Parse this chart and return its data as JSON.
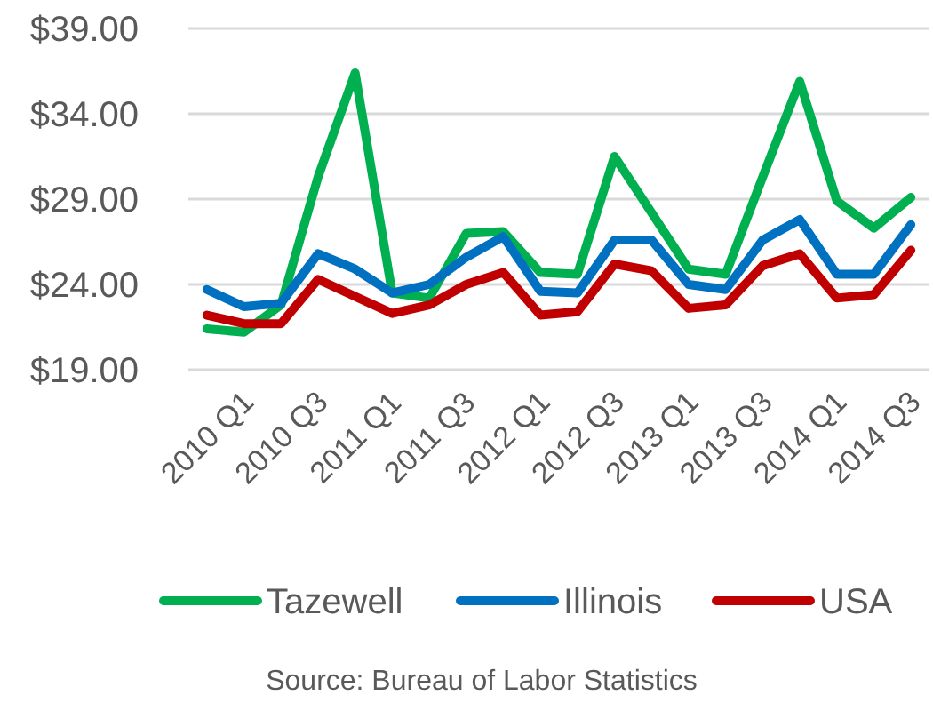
{
  "chart_data": {
    "type": "line",
    "categories": [
      "2010 Q1",
      null,
      "2010 Q3",
      null,
      "2011 Q1",
      null,
      "2011 Q3",
      null,
      "2012 Q1",
      null,
      "2012 Q3",
      null,
      "2013 Q1",
      null,
      "2013 Q3",
      null,
      "2014 Q1",
      null,
      "2014 Q3",
      null
    ],
    "series": [
      {
        "name": "Tazewell",
        "color": "#00b050",
        "values": [
          21.4,
          21.2,
          22.8,
          30.3,
          36.4,
          23.5,
          23.2,
          27.0,
          27.1,
          24.7,
          24.6,
          31.5,
          28.2,
          24.9,
          24.6,
          30.3,
          35.9,
          28.9,
          27.3,
          29.1
        ]
      },
      {
        "name": "Illinois",
        "color": "#0070c0",
        "values": [
          23.7,
          22.7,
          22.9,
          25.8,
          24.9,
          23.5,
          24.0,
          25.6,
          26.8,
          23.6,
          23.5,
          26.6,
          26.6,
          24.0,
          23.7,
          26.6,
          27.8,
          24.6,
          24.6,
          27.5
        ]
      },
      {
        "name": "USA",
        "color": "#c00000",
        "values": [
          22.2,
          21.7,
          21.7,
          24.3,
          23.3,
          22.3,
          22.8,
          24.0,
          24.7,
          22.2,
          22.4,
          25.2,
          24.8,
          22.6,
          22.8,
          25.1,
          25.8,
          23.2,
          23.4,
          26.0
        ]
      }
    ],
    "ylim": [
      19,
      39
    ],
    "yticks": [
      {
        "value": 19,
        "label": "$19.00"
      },
      {
        "value": 24,
        "label": "$24.00"
      },
      {
        "value": 29,
        "label": "$29.00"
      },
      {
        "value": 34,
        "label": "$34.00"
      },
      {
        "value": 39,
        "label": "$39.00"
      }
    ],
    "grid": "y",
    "legend": "bottom",
    "marker": "none",
    "line_style": "solid",
    "annotations": [
      "Source: Bureau of Labor Statistics"
    ]
  }
}
